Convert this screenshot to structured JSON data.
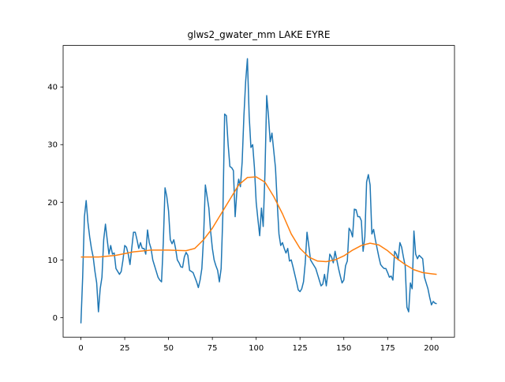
{
  "chart_data": {
    "type": "line",
    "title": "glws2_gwater_mm LAKE EYRE",
    "x": [
      0,
      1,
      2,
      3,
      4,
      5,
      6,
      7,
      8,
      9,
      10,
      11,
      12,
      13,
      14,
      15,
      16,
      17,
      18,
      19,
      20,
      21,
      22,
      23,
      24,
      25,
      26,
      27,
      28,
      29,
      30,
      31,
      32,
      33,
      34,
      35,
      36,
      37,
      38,
      39,
      40,
      41,
      42,
      43,
      44,
      45,
      46,
      47,
      48,
      49,
      50,
      51,
      52,
      53,
      54,
      55,
      56,
      57,
      58,
      59,
      60,
      61,
      62,
      63,
      64,
      65,
      66,
      67,
      68,
      69,
      70,
      71,
      72,
      73,
      74,
      75,
      76,
      77,
      78,
      79,
      80,
      81,
      82,
      83,
      84,
      85,
      86,
      87,
      88,
      89,
      90,
      91,
      92,
      93,
      94,
      95,
      96,
      97,
      98,
      99,
      100,
      101,
      102,
      103,
      104,
      105,
      106,
      107,
      108,
      109,
      110,
      111,
      112,
      113,
      114,
      115,
      116,
      117,
      118,
      119,
      120,
      121,
      122,
      123,
      124,
      125,
      126,
      127,
      128,
      129,
      130,
      131,
      132,
      133,
      134,
      135,
      136,
      137,
      138,
      139,
      140,
      141,
      142,
      143,
      144,
      145,
      146,
      147,
      148,
      149,
      150,
      151,
      152,
      153,
      154,
      155,
      156,
      157,
      158,
      159,
      160,
      161,
      162,
      163,
      164,
      165,
      166,
      167,
      168,
      169,
      170,
      171,
      172,
      173,
      174,
      175,
      176,
      177,
      178,
      179,
      180,
      181,
      182,
      183,
      184,
      185,
      186,
      187,
      188,
      189,
      190,
      191,
      192,
      193,
      194,
      195,
      196,
      197,
      198,
      199,
      200,
      201,
      202,
      203
    ],
    "series": [
      {
        "color": "#1f77b4",
        "values": [
          -1.0,
          7,
          17.5,
          20.3,
          16.5,
          14,
          12,
          10.5,
          8,
          6,
          1,
          5,
          7,
          13.5,
          16.2,
          13.5,
          11,
          12.5,
          11,
          11.2,
          8.5,
          8,
          7.5,
          8,
          10,
          12.5,
          12.2,
          11,
          9.2,
          12,
          14.8,
          14.8,
          13.5,
          12,
          13,
          12,
          12,
          11,
          15.2,
          13,
          12,
          10,
          9,
          8,
          7,
          6.5,
          6.2,
          13,
          22.5,
          21,
          18.5,
          13.5,
          12.8,
          13.5,
          12,
          10,
          9.5,
          8.8,
          8.7,
          10.5,
          11.3,
          10.8,
          8.2,
          8,
          7.8,
          7,
          6.2,
          5.2,
          6.5,
          8.5,
          14,
          23,
          21,
          19,
          15,
          12,
          10,
          9,
          8.2,
          6.2,
          8.5,
          18,
          35.3,
          35,
          30,
          26.2,
          26,
          25.5,
          17.5,
          22,
          24,
          22.7,
          27,
          35,
          41,
          44.9,
          35,
          29.5,
          30,
          26,
          20,
          17,
          14.2,
          19,
          15.8,
          25,
          38.5,
          35,
          30.5,
          32,
          29,
          26,
          20,
          14.5,
          12.5,
          13,
          12,
          11.2,
          12,
          9.8,
          10,
          8.8,
          7.5,
          6.2,
          4.8,
          4.5,
          5,
          6.2,
          9.5,
          14.8,
          12.5,
          10,
          9.5,
          9,
          8.5,
          7.5,
          6.5,
          5.5,
          5.8,
          7.5,
          5.5,
          8,
          11,
          10.5,
          9.5,
          11.5,
          10,
          8.5,
          7.2,
          6,
          6.5,
          9,
          9.8,
          15.5,
          15,
          14,
          18.8,
          18.7,
          17.5,
          17.5,
          16.8,
          11.5,
          14,
          23.5,
          24.8,
          23,
          14.5,
          15.3,
          13.5,
          12,
          10.5,
          9.2,
          8.8,
          8.5,
          8.5,
          7.8,
          7,
          7.2,
          6.5,
          11.5,
          11,
          10,
          13,
          12.2,
          10.5,
          9,
          1.8,
          1,
          6,
          5,
          15,
          11,
          10.2,
          10.8,
          10.5,
          10.2,
          7,
          6,
          5,
          3.5,
          2.2,
          2.8,
          2.5,
          2.4
        ]
      },
      {
        "color": "#ff7f0e",
        "x": [
          0,
          10,
          20,
          30,
          40,
          50,
          60,
          65,
          70,
          75,
          80,
          85,
          90,
          95,
          100,
          105,
          110,
          115,
          120,
          125,
          130,
          135,
          140,
          145,
          150,
          155,
          160,
          165,
          170,
          175,
          180,
          185,
          190,
          195,
          200,
          203
        ],
        "values": [
          10.5,
          10.5,
          10.8,
          11.4,
          11.7,
          11.7,
          11.6,
          12,
          13.5,
          15.5,
          18,
          20.5,
          23,
          24.3,
          24.4,
          23.5,
          21,
          18,
          14.5,
          12,
          10.5,
          9.8,
          9.7,
          10,
          10.7,
          11.7,
          12.5,
          12.9,
          12.6,
          11.6,
          10.3,
          9.2,
          8.3,
          7.8,
          7.6,
          7.5
        ]
      }
    ],
    "xlim": [
      -10.15,
      213.15
    ],
    "xticks": [
      0,
      25,
      50,
      75,
      100,
      125,
      150,
      175,
      200
    ],
    "ylim": [
      -3.4,
      47.2
    ],
    "yticks": [
      0,
      10,
      20,
      30,
      40
    ]
  }
}
